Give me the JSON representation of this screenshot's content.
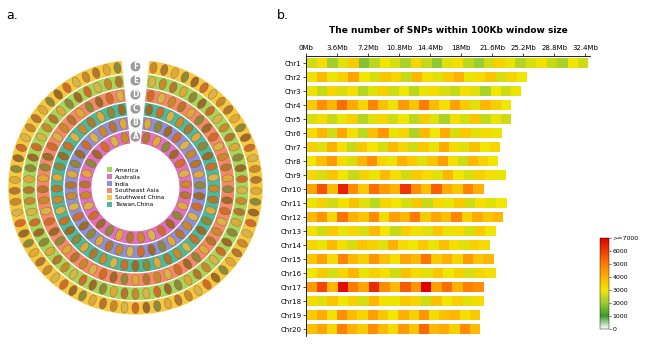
{
  "chart_data": [
    {
      "type": "rings",
      "panel_label": "a.",
      "legend": "center",
      "rings": [
        "A",
        "B",
        "C",
        "D",
        "E",
        "F"
      ],
      "series": [
        {
          "name": "America",
          "color": "#a8d45a",
          "ring": "E"
        },
        {
          "name": "Australia",
          "color": "#e070c0",
          "ring": "A"
        },
        {
          "name": "India",
          "color": "#8f8fd8",
          "ring": "B"
        },
        {
          "name": "Southeast Asia",
          "color": "#f08a6a",
          "ring": "D"
        },
        {
          "name": "Southwest China",
          "color": "#f5c842",
          "ring": "F"
        },
        {
          "name": "Taiwan,China",
          "color": "#4db8a0",
          "ring": "C"
        }
      ]
    },
    {
      "type": "heatmap",
      "panel_label": "b.",
      "title": "The number of SNPs within 100Kb window size",
      "xlim": [
        0,
        33
      ],
      "xticks": [
        {
          "value": 0,
          "label": "0Mb"
        },
        {
          "value": 3.6,
          "label": "3.6Mb"
        },
        {
          "value": 7.2,
          "label": "7.2Mb"
        },
        {
          "value": 10.8,
          "label": "10.8Mb"
        },
        {
          "value": 14.4,
          "label": "14.4Mb"
        },
        {
          "value": 18,
          "label": "18Mb"
        },
        {
          "value": 21.6,
          "label": "21.6Mb"
        },
        {
          "value": 25.2,
          "label": "25.2Mb"
        },
        {
          "value": 28.8,
          "label": "28.8Mb"
        },
        {
          "value": 32.4,
          "label": "32.4Mb"
        }
      ],
      "categories": [
        "Chr1",
        "Chr2",
        "Chr3",
        "Chr4",
        "Chr5",
        "Chr6",
        "Chr7",
        "Chr8",
        "Chr9",
        "Chr10",
        "Chr11",
        "Chr12",
        "Chr13",
        "Chr14",
        "Chr15",
        "Chr16",
        "Chr17",
        "Chr18",
        "Chr19",
        "Chr20"
      ],
      "lengths": [
        32.8,
        25.7,
        25.0,
        23.8,
        23.8,
        22.7,
        22.5,
        22.3,
        23.2,
        20.6,
        23.3,
        22.9,
        22.0,
        21.3,
        21.8,
        22.0,
        20.6,
        20.6,
        20.2,
        20.2
      ],
      "values": [
        [
          2600,
          3200,
          2100,
          2800,
          3500,
          1800,
          2400,
          3000,
          2700,
          2200,
          3300,
          2500,
          1900,
          2800,
          3100,
          2400,
          2000,
          2600,
          3400,
          2900,
          2300,
          2700,
          3100,
          2500,
          2200,
          3000,
          2600
        ],
        [
          3100,
          3800,
          2900,
          3400,
          4200,
          3000,
          2700,
          3600,
          3300,
          2500,
          3900,
          3100,
          2800,
          3500,
          4000,
          2900,
          3200,
          3600,
          2700,
          3300,
          3000
        ],
        [
          2900,
          2500,
          3300,
          2700,
          3100,
          2300,
          2800,
          3400,
          2600,
          3000,
          2400,
          2900,
          3200,
          2700,
          2500,
          3100,
          2800,
          2200,
          3000,
          2600,
          2900
        ],
        [
          3500,
          4600,
          3900,
          5200,
          4100,
          3300,
          4800,
          3700,
          2900,
          4400,
          3600,
          5000,
          3800,
          3100,
          4300,
          3500,
          2800,
          3900,
          3400,
          3000
        ],
        [
          2700,
          3200,
          2500,
          2900,
          3400,
          2300,
          2800,
          3300,
          2600,
          3000,
          2400,
          3500,
          2800,
          2200,
          3100,
          2700,
          3600,
          2500,
          2900,
          2600
        ],
        [
          3200,
          3900,
          2600,
          4200,
          3100,
          2400,
          3700,
          4500,
          2900,
          3300,
          2200,
          3800,
          3000,
          4100,
          2700,
          3500,
          2800,
          3200,
          2900
        ],
        [
          3400,
          2800,
          4000,
          3100,
          2500,
          3600,
          3000,
          2700,
          3800,
          3300,
          2600,
          3500,
          2900,
          4100,
          3200,
          2800,
          3700,
          3000,
          3300
        ],
        [
          3000,
          3700,
          4400,
          3200,
          2700,
          3900,
          4600,
          3300,
          2900,
          4000,
          3500,
          2800,
          3600,
          4300,
          3100,
          2600,
          3800,
          3400,
          3000
        ],
        [
          3300,
          2700,
          3600,
          3000,
          2500,
          3400,
          2900,
          3800,
          3100,
          2600,
          3500,
          3200,
          2800,
          3900,
          3000,
          2700,
          3400,
          3100,
          2900
        ],
        [
          4200,
          5600,
          3800,
          6500,
          4700,
          3500,
          5200,
          4400,
          3900,
          6100,
          4600,
          3700,
          5400,
          4100,
          3600,
          4800,
          4000
        ],
        [
          2900,
          3400,
          2600,
          3100,
          3700,
          2800,
          2400,
          3300,
          3000,
          2700,
          3600,
          2500,
          3200,
          2900,
          3500,
          2600,
          3100,
          2800,
          3000
        ],
        [
          3800,
          4500,
          3300,
          5100,
          4000,
          3600,
          4700,
          3200,
          4300,
          3900,
          5000,
          3500,
          4200,
          3700,
          4800,
          3400,
          4100,
          3600,
          3900
        ],
        [
          3100,
          2600,
          3500,
          2900,
          3300,
          2700,
          3800,
          3000,
          2500,
          3400,
          3100,
          2800,
          3600,
          2900,
          3200,
          2700,
          3500,
          3000
        ],
        [
          3300,
          2900,
          3800,
          3100,
          2700,
          3600,
          3400,
          2800,
          4000,
          3200,
          3000,
          3500,
          2900,
          3700,
          3100,
          2800,
          3400,
          3200
        ],
        [
          3600,
          4300,
          3200,
          4800,
          3900,
          3400,
          4500,
          3700,
          3100,
          4200,
          3800,
          5100,
          3500,
          4000,
          3300,
          4400,
          3600,
          3900
        ],
        [
          3000,
          3500,
          2700,
          3300,
          3900,
          2900,
          3400,
          3100,
          2600,
          3700,
          3200,
          2800,
          3600,
          3000,
          3400,
          2700,
          3300,
          3100
        ],
        [
          4400,
          5800,
          3900,
          6800,
          5000,
          4200,
          6300,
          4700,
          3800,
          5500,
          4500,
          7000,
          4300,
          5200,
          4000,
          4900,
          4600
        ],
        [
          3200,
          2800,
          3600,
          3000,
          3400,
          2700,
          3900,
          3100,
          2900,
          3500,
          3300,
          2600,
          3700,
          3000,
          3400,
          2800,
          3200
        ],
        [
          3500,
          4100,
          3100,
          4600,
          3800,
          3300,
          4300,
          3600,
          3000,
          4000,
          3400,
          4500,
          3200,
          3700,
          3900,
          3100,
          3500
        ],
        [
          3700,
          4200,
          3300,
          4900,
          4000,
          3500,
          4600,
          3800,
          3200,
          4400,
          3600,
          5300,
          3900,
          4100,
          3400,
          4700,
          3800
        ]
      ],
      "color_range": [
        0,
        7000
      ],
      "color_ticks": [
        0,
        1000,
        2000,
        3000,
        4000,
        5000,
        6000,
        {
          "value": 7000,
          "label": ">=7000"
        }
      ]
    }
  ]
}
